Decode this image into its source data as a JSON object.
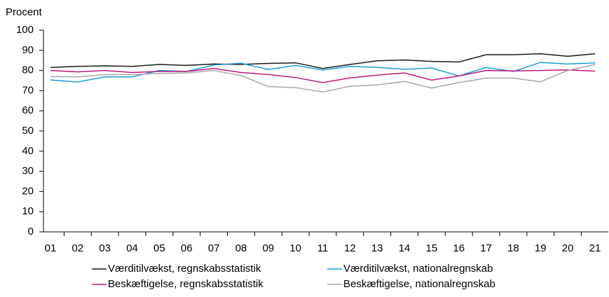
{
  "chart_data": {
    "type": "line",
    "y_label": "Procent",
    "categories": [
      "01",
      "02",
      "03",
      "04",
      "05",
      "06",
      "07",
      "08",
      "09",
      "10",
      "11",
      "12",
      "13",
      "14",
      "15",
      "16",
      "17",
      "18",
      "19",
      "20",
      "21"
    ],
    "series": [
      {
        "name": "Værditilvækst, regnskabsstatistik",
        "color": "#1a1a1a",
        "values": [
          81.5,
          82,
          82.3,
          82,
          83,
          82.5,
          83.2,
          83,
          83.5,
          83.8,
          81,
          83,
          84.8,
          85.2,
          84.5,
          84.2,
          87.8,
          87.8,
          88.3,
          87,
          88.3
        ]
      },
      {
        "name": "Værditilvækst, nationalregnskab",
        "color": "#1a9cd8",
        "values": [
          75.3,
          74.3,
          76.8,
          76.8,
          80,
          79.5,
          82.7,
          83.6,
          80.5,
          82.5,
          80.2,
          82,
          81.5,
          80.6,
          81.2,
          77.3,
          81.5,
          79.5,
          84,
          83.2,
          83.8
        ]
      },
      {
        "name": "Beskæftigelse, regnskabsstatistik",
        "color": "#c0177f",
        "values": [
          80,
          79.3,
          80,
          79,
          79.5,
          79.5,
          81,
          79,
          78,
          76.5,
          74,
          76.3,
          77.7,
          78.8,
          75.2,
          77.3,
          80,
          79.8,
          80,
          80.3,
          79.7
        ]
      },
      {
        "name": "Beskæftigelse, nationalregnskab",
        "color": "#a8a8a8",
        "values": [
          77,
          76.8,
          78,
          77.9,
          78.5,
          78.8,
          80,
          77.5,
          72,
          71.5,
          69.3,
          72.2,
          72.8,
          74.6,
          71.3,
          74,
          76.2,
          76.2,
          74.4,
          80,
          83
        ]
      }
    ],
    "ylim": [
      0,
      100
    ],
    "yticks": [
      0,
      10,
      20,
      30,
      40,
      50,
      60,
      70,
      80,
      90,
      100
    ],
    "grid": false
  }
}
